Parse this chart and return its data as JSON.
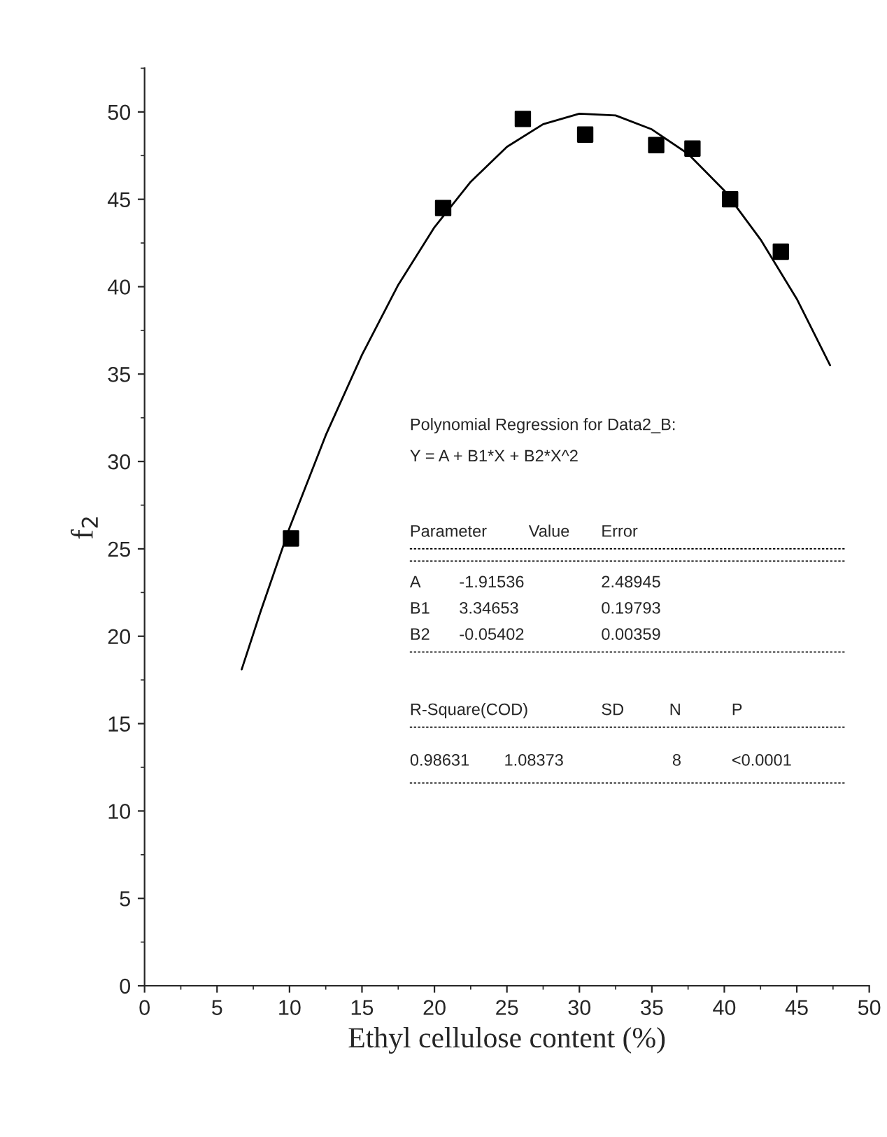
{
  "chart_data": {
    "type": "scatter",
    "xlabel": "Ethyl cellulose content (%)",
    "ylabel": "f$_{2}$",
    "xlim": [
      0,
      50
    ],
    "ylim": [
      0,
      52.5
    ],
    "xticks": [
      0,
      5,
      10,
      15,
      20,
      25,
      30,
      35,
      40,
      45,
      50
    ],
    "yticks": [
      0,
      5,
      10,
      15,
      20,
      25,
      30,
      35,
      40,
      45,
      50
    ],
    "grid": false,
    "legend": false,
    "series": [
      {
        "marker": "square",
        "color": "#000000",
        "x": [
          10.1,
          20.6,
          26.1,
          30.4,
          35.3,
          37.8,
          40.4,
          43.9
        ],
        "values": [
          25.6,
          44.5,
          49.6,
          48.7,
          48.1,
          47.9,
          45.0,
          42.0
        ]
      },
      {
        "type": "line",
        "line_style": "solid",
        "color": "#000000",
        "x": [
          6.7,
          8,
          10,
          12.5,
          15,
          17.5,
          20,
          22.5,
          25,
          27.5,
          30,
          32.5,
          35,
          37.5,
          40,
          42.5,
          45,
          47.3
        ],
        "values": [
          18.1,
          21.4,
          26.2,
          31.5,
          36.1,
          40.1,
          43.4,
          46.0,
          48.0,
          49.3,
          49.9,
          49.8,
          49.0,
          47.6,
          45.5,
          42.7,
          39.3,
          35.5
        ]
      }
    ],
    "annotations": [
      "Polynomial Regression for Data2_B:",
      "Y = A + B1*X + B2*X^2",
      "Parameter",
      "Value",
      "Error",
      "A",
      "-1.91536",
      "2.48945",
      "B1",
      "3.34653",
      "0.19793",
      "B2",
      "-0.05402",
      "0.00359",
      "R-Square(COD)",
      "SD",
      "N",
      "P",
      "0.98631",
      "1.08373",
      "8",
      "<0.0001"
    ]
  }
}
